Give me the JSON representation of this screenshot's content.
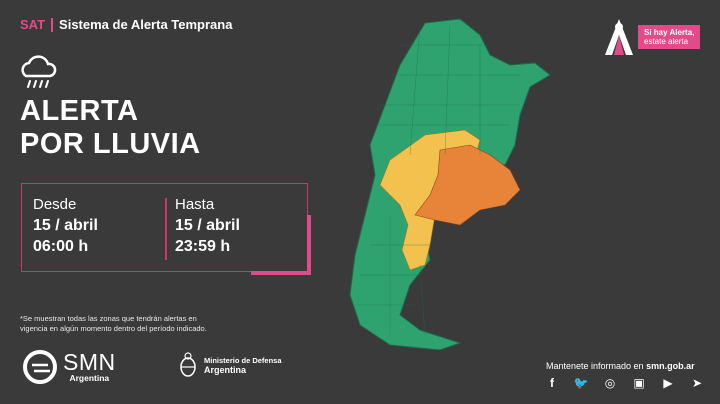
{
  "header": {
    "sat": "SAT",
    "system": "Sistema de Alerta Temprana"
  },
  "icon_weather": "rain-cloud-icon",
  "alert": {
    "line1": "ALERTA",
    "line2": "POR LLUVIA"
  },
  "desde": {
    "label": "Desde",
    "date": "15 / abril",
    "time": "06:00 h"
  },
  "hasta": {
    "label": "Hasta",
    "date": "15 / abril",
    "time": "23:59 h"
  },
  "note": {
    "line1": "*Se muestran todas las zonas que tendrán alertas en",
    "line2": "vigencia en algún momento dentro del período indicado."
  },
  "smn": {
    "name": "SMN",
    "country": "Argentina"
  },
  "ministerio": {
    "line1": "Ministerio de Defensa",
    "line2": "Argentina"
  },
  "campaign": {
    "bold": "Si hay Alerta,",
    "rest": "estate alerta"
  },
  "follow": {
    "text": "Mantenete informado en",
    "site": "smn.gob.ar"
  },
  "social": [
    "f",
    "t",
    "i",
    "tv",
    "yt",
    "tg"
  ],
  "colors": {
    "background": "#3a3a3a",
    "accent": "#e14b8a",
    "green": "#2fa36f",
    "yellow": "#f2c14e",
    "orange": "#e7843a"
  }
}
